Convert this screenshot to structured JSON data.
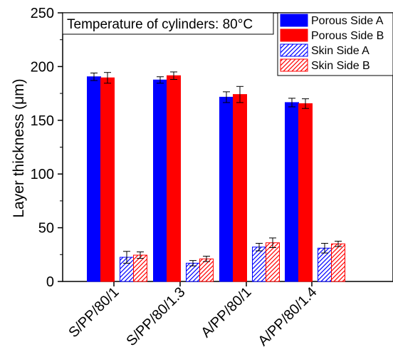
{
  "chart_data": {
    "type": "bar",
    "annotation": "Temperature of cylinders: 80°C",
    "xlabel": "",
    "ylabel": "Layer thickness (μm)",
    "ylim": [
      0,
      250
    ],
    "yticks": [
      0,
      50,
      100,
      150,
      200,
      250
    ],
    "grid": false,
    "legend_position": "top-right",
    "categories": [
      "S/PP/80/1",
      "S/PP/80/1.3",
      "A/PP/80/1",
      "A/PP/80/1.4"
    ],
    "series": [
      {
        "name": "Porous Side A",
        "color": "#0000ff",
        "fill": "solid",
        "values": [
          190.5,
          187.5,
          171.5,
          166.5
        ],
        "errors": [
          3.5,
          3,
          5,
          4
        ]
      },
      {
        "name": "Porous Side B",
        "color": "#ff0000",
        "fill": "solid",
        "values": [
          189.5,
          191.5,
          174,
          165.5
        ],
        "errors": [
          5,
          3.5,
          7.5,
          4.5
        ]
      },
      {
        "name": "Skin Side A",
        "color": "#0000ff",
        "fill": "hatched",
        "values": [
          22.5,
          17,
          32,
          31
        ],
        "errors": [
          5.5,
          2.5,
          3.5,
          4.5
        ]
      },
      {
        "name": "Skin Side B",
        "color": "#ff0000",
        "fill": "hatched",
        "values": [
          24.5,
          21,
          36,
          35
        ],
        "errors": [
          3,
          2.5,
          4.5,
          2.5
        ]
      }
    ]
  }
}
